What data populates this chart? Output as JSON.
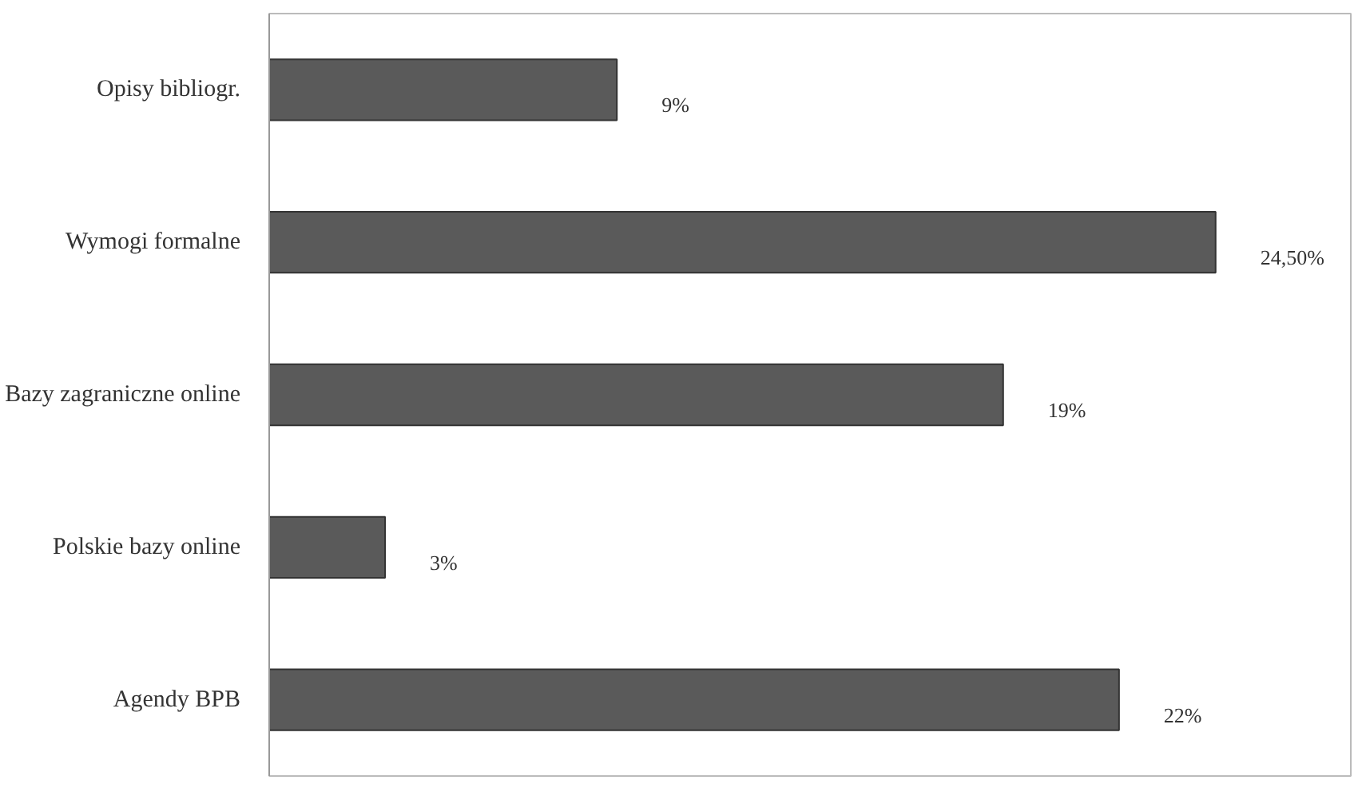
{
  "chart_data": {
    "type": "bar",
    "orientation": "horizontal",
    "categories": [
      "Opisy bibliogr.",
      "Wymogi formalne",
      "Bazy zagraniczne online",
      "Polskie bazy online",
      "Agendy BPB"
    ],
    "values": [
      9,
      24.5,
      19,
      3,
      22
    ],
    "value_labels": [
      "9%",
      "24,50%",
      "19%",
      "3%",
      "22%"
    ],
    "color": "#5a5a5a",
    "xlim": [
      0,
      28
    ],
    "grid": false
  }
}
